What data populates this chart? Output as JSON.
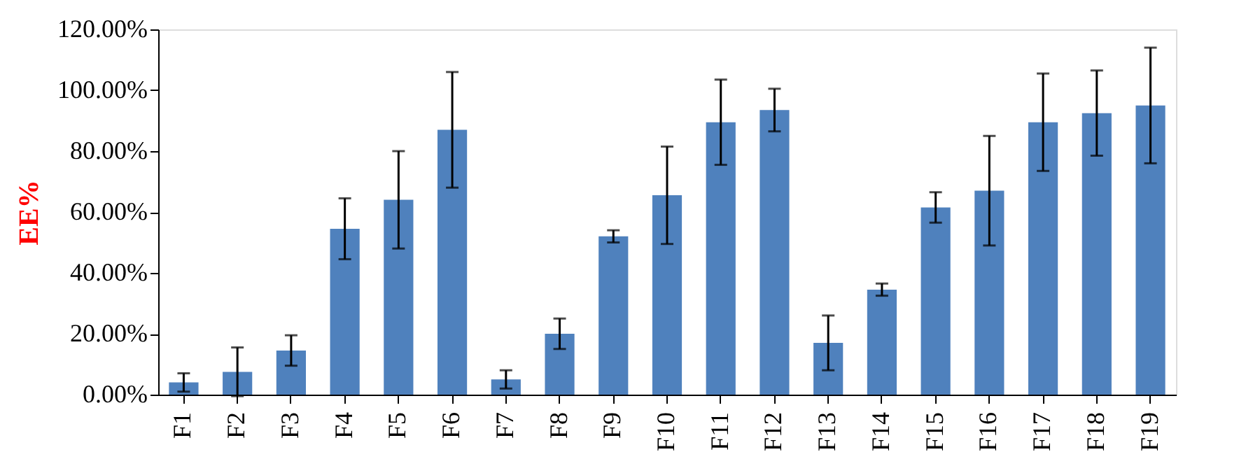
{
  "chart_data": {
    "type": "bar",
    "ylabel": "EE%",
    "categories": [
      "F1",
      "F2",
      "F3",
      "F4",
      "F5",
      "F6",
      "F7",
      "F8",
      "F9",
      "F10",
      "F11",
      "F12",
      "F13",
      "F14",
      "F15",
      "F16",
      "F17",
      "F18",
      "F19"
    ],
    "values": [
      4,
      7.5,
      14.5,
      54.5,
      64,
      87,
      5,
      20,
      52,
      65.5,
      89.5,
      93.5,
      17,
      34.5,
      61.5,
      67,
      89.5,
      92.5,
      95
    ],
    "errors": [
      3,
      8,
      5,
      10,
      16,
      19,
      3,
      5,
      2,
      16,
      14,
      7,
      9,
      2,
      5,
      18,
      16,
      14,
      19
    ],
    "color": "#4f81bd",
    "ylim": [
      0,
      120
    ],
    "yticks": [
      {
        "value": 0,
        "label": "0.00%"
      },
      {
        "value": 20,
        "label": "20.00%"
      },
      {
        "value": 40,
        "label": "40.00%"
      },
      {
        "value": 60,
        "label": "60.00%"
      },
      {
        "value": 80,
        "label": "80.00%"
      },
      {
        "value": 100,
        "label": "100.00%"
      },
      {
        "value": 120,
        "label": "120.00%"
      }
    ],
    "grid": false
  }
}
